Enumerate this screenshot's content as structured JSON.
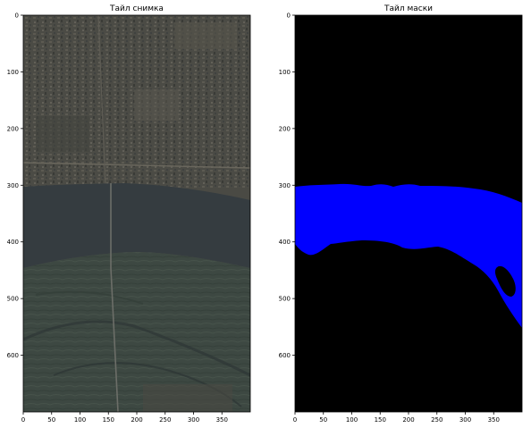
{
  "panels": [
    {
      "title": "Тайл снимка",
      "kind": "satellite-image",
      "x_ticks": [
        "0",
        "50",
        "100",
        "150",
        "200",
        "250",
        "300",
        "350"
      ],
      "y_ticks": [
        "0",
        "100",
        "200",
        "300",
        "400",
        "500",
        "600"
      ],
      "x_range": [
        0,
        400
      ],
      "y_range": [
        0,
        700
      ],
      "colors": {
        "urban": "#4a4a44",
        "river": "#353c40",
        "floodplain": "#3b4640",
        "channel": "#2a3032"
      }
    },
    {
      "title": "Тайл маски",
      "kind": "segmentation-mask",
      "x_ticks": [
        "0",
        "50",
        "100",
        "150",
        "200",
        "250",
        "300",
        "350"
      ],
      "y_ticks": [
        "0",
        "100",
        "200",
        "300",
        "400",
        "500",
        "600"
      ],
      "x_range": [
        0,
        400
      ],
      "y_range": [
        0,
        700
      ],
      "colors": {
        "background": "#000000",
        "water": "#0000ff"
      }
    }
  ]
}
